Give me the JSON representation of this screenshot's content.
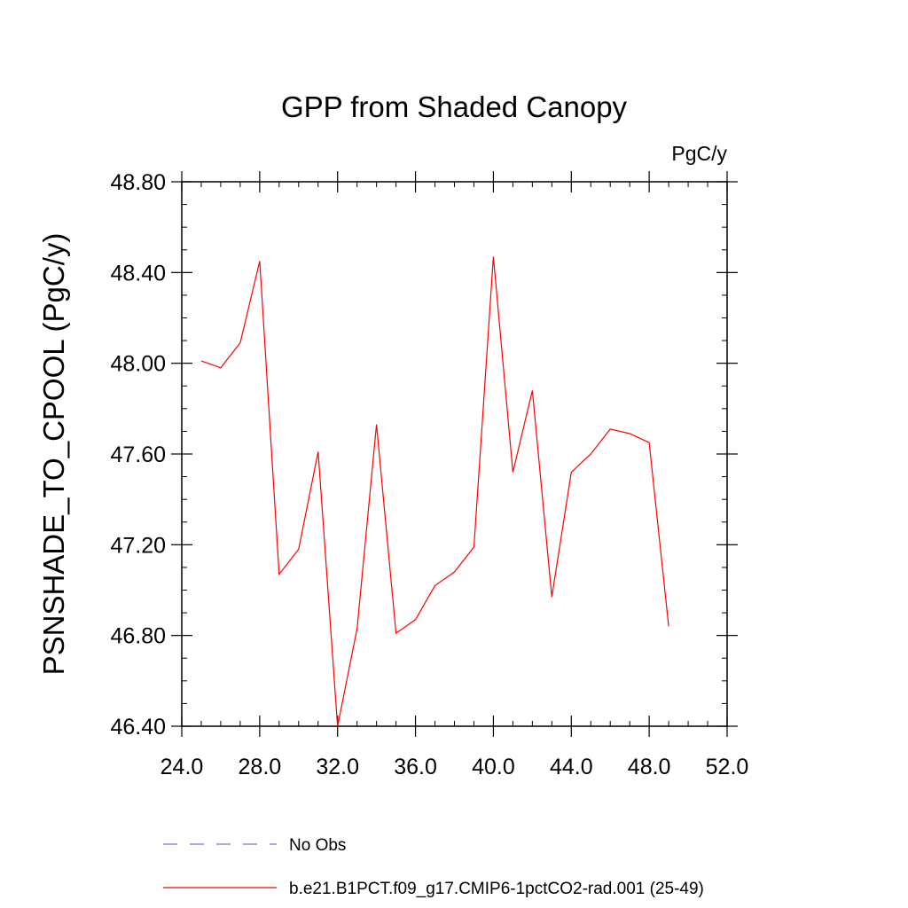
{
  "chart_data": {
    "type": "line",
    "title": "GPP from Shaded Canopy",
    "units": "PgC/y",
    "ylabel": "PSNSHADE_TO_CPOOL  (PgC/y)",
    "xlabel": "",
    "xlim": [
      24.0,
      52.0
    ],
    "ylim": [
      46.4,
      48.8
    ],
    "xticks": [
      "24.0",
      "28.0",
      "32.0",
      "36.0",
      "40.0",
      "44.0",
      "48.0",
      "52.0"
    ],
    "yticks": [
      "46.40",
      "46.80",
      "47.20",
      "47.60",
      "48.00",
      "48.40",
      "48.80"
    ],
    "grid": false,
    "series": [
      {
        "name": "b.e21.B1PCT.f09_g17.CMIP6-1pctCO2-rad.001 (25-49)",
        "color": "#ff0000",
        "x": [
          25,
          26,
          27,
          28,
          29,
          30,
          31,
          32,
          33,
          34,
          35,
          36,
          37,
          38,
          39,
          40,
          41,
          42,
          43,
          44,
          45,
          46,
          47,
          48,
          49
        ],
        "y": [
          48.01,
          47.98,
          48.09,
          48.45,
          47.07,
          47.18,
          47.61,
          46.4,
          46.83,
          47.73,
          46.81,
          46.87,
          47.02,
          47.08,
          47.19,
          48.47,
          47.52,
          47.88,
          46.97,
          47.52,
          47.6,
          47.71,
          47.69,
          47.65,
          46.84
        ]
      }
    ],
    "legend": {
      "placement": "bottom",
      "entries": [
        {
          "label": "No Obs",
          "style": "dashed",
          "color": "#7777cc"
        },
        {
          "label": "b.e21.B1PCT.f09_g17.CMIP6-1pctCO2-rad.001 (25-49)",
          "style": "solid",
          "color": "#ff0000"
        }
      ]
    }
  }
}
